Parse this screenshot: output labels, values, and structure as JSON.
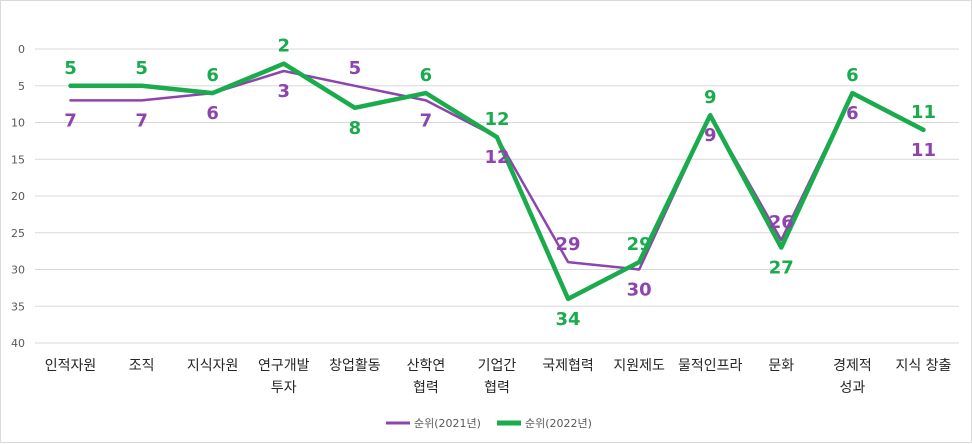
{
  "chart_data": {
    "type": "line",
    "categories": [
      [
        "인적자원"
      ],
      [
        "조직"
      ],
      [
        "지식자원"
      ],
      [
        "연구개발",
        "투자"
      ],
      [
        "창업활동"
      ],
      [
        "산학연",
        "협력"
      ],
      [
        "기업간",
        "협력"
      ],
      [
        "국제협력"
      ],
      [
        "지원제도"
      ],
      [
        "물적인프라"
      ],
      [
        "문화"
      ],
      [
        "경제적",
        "성과"
      ],
      [
        "지식 창출"
      ]
    ],
    "ylim": [
      0,
      40
    ],
    "yticks": [
      0,
      5,
      10,
      15,
      20,
      25,
      30,
      35,
      40
    ],
    "y_inverted": true,
    "grid": true,
    "legend_position": "bottom",
    "series": [
      {
        "name": "순위(2021년)",
        "color": "#8e44ad",
        "values": [
          7,
          7,
          6,
          3,
          5,
          7,
          12,
          29,
          30,
          9,
          26,
          6,
          11
        ]
      },
      {
        "name": "순위(2022년)",
        "color": "#1aab4c",
        "values": [
          5,
          5,
          6,
          2,
          8,
          6,
          12,
          34,
          29,
          9,
          27,
          6,
          11
        ]
      }
    ]
  }
}
